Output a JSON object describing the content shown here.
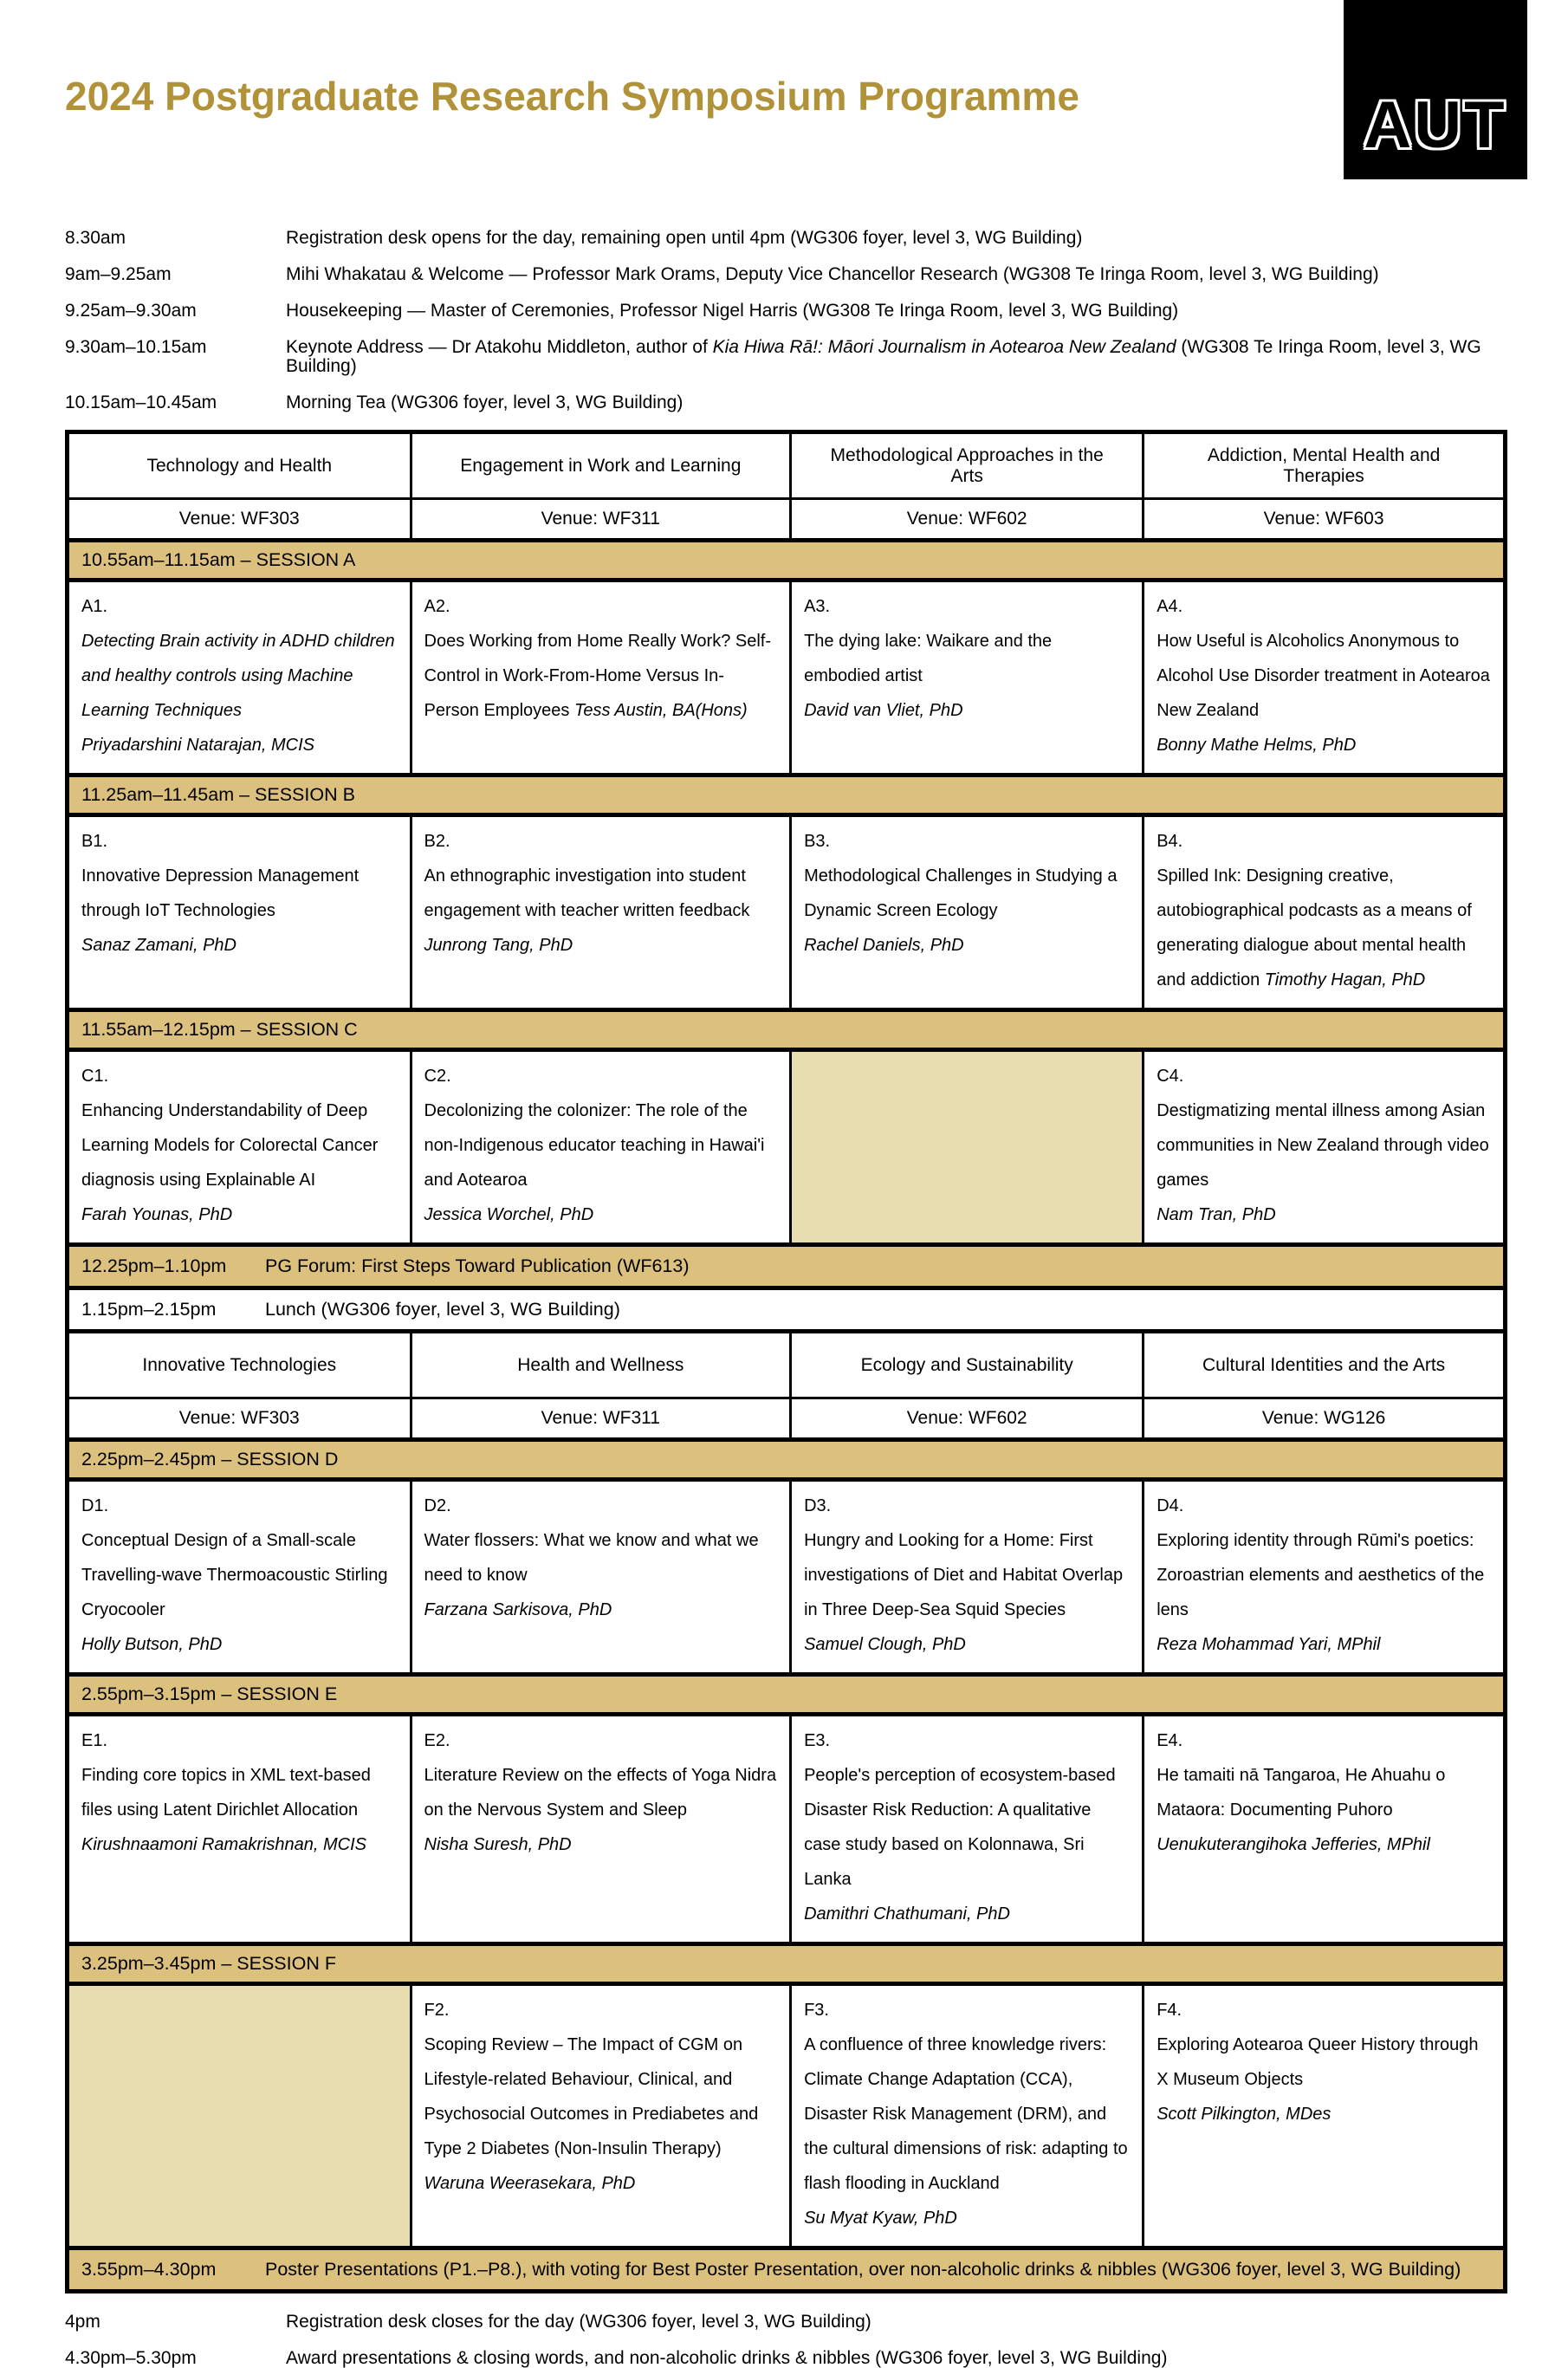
{
  "page": {
    "title": "2024 Postgraduate Research Symposium Programme",
    "logo_text": "AUT"
  },
  "colors": {
    "title": "#b19238",
    "session_band": "#dcc07e",
    "empty_cell": "#e8dcb1"
  },
  "schedule_top": [
    {
      "time": "8.30am",
      "desc": [
        {
          "t": "Registration desk opens for the day, remaining open until 4pm (WG306 foyer, level 3, WG Building)"
        }
      ]
    },
    {
      "time": "9am–9.25am",
      "desc": [
        {
          "t": "Mihi Whakatau & Welcome — Professor Mark Orams, Deputy Vice Chancellor Research (WG308 Te Iringa Room, level 3, WG Building)"
        }
      ]
    },
    {
      "time": "9.25am–9.30am",
      "desc": [
        {
          "t": "Housekeeping — Master of Ceremonies, Professor Nigel Harris (WG308 Te Iringa Room, level 3, WG Building)"
        }
      ]
    },
    {
      "time": "9.30am–10.15am",
      "desc": [
        {
          "t": "Keynote Address — Dr Atakohu Middleton,  author of "
        },
        {
          "t": "Kia Hiwa Rā!: Māori Journalism in Aotearoa New Zealand",
          "i": true
        },
        {
          "t": " (WG308 Te Iringa Room, level 3, WG Building)"
        }
      ]
    },
    {
      "time": "10.15am–10.45am",
      "desc": [
        {
          "t": "Morning Tea (WG306 foyer, level 3, WG Building)"
        }
      ]
    }
  ],
  "program_table": {
    "part1": {
      "themes": [
        "Technology and Health",
        "Engagement in Work and Learning",
        "Methodological Approaches in the Arts",
        "Addiction, Mental Health and Therapies"
      ],
      "venues": [
        "Venue: WF303",
        "Venue: WF311",
        "Venue: WF602",
        "Venue: WF603"
      ],
      "sessions": [
        {
          "label": "10.55am–11.15am – SESSION A",
          "cells": [
            {
              "code": "A1.",
              "title": "Detecting Brain activity in ADHD children and healthy controls using Machine Learning Techniques",
              "title_italic": true,
              "speaker": "Priyadarshini Natarajan, MCIS"
            },
            {
              "code": "A2.",
              "title": "Does Working from Home Really Work? Self-Control in Work-From-Home Versus In-Person Employees",
              "speaker": "Tess Austin, BA(Hons)",
              "speaker_inline": true
            },
            {
              "code": "A3.",
              "title": "The dying lake: Waikare and the embodied artist",
              "speaker": "David van Vliet, PhD"
            },
            {
              "code": "A4.",
              "title": "How Useful is Alcoholics Anonymous to Alcohol Use Disorder treatment in Aotearoa New Zealand",
              "speaker": "Bonny Mathe Helms, PhD"
            }
          ]
        },
        {
          "label": "11.25am–11.45am – SESSION B",
          "cells": [
            {
              "code": "B1.",
              "title": "Innovative Depression Management through IoT Technologies",
              "speaker": "Sanaz Zamani, PhD"
            },
            {
              "code": "B2.",
              "title": "An ethnographic investigation into student engagement with teacher written feedback",
              "speaker": "Junrong Tang, PhD"
            },
            {
              "code": "B3.",
              "title": "Methodological Challenges in Studying a Dynamic Screen Ecology",
              "speaker": "Rachel Daniels, PhD"
            },
            {
              "code": "B4.",
              "title": "Spilled Ink: Designing creative, autobiographical podcasts as a means of generating dialogue about mental health and addiction",
              "speaker": "Timothy Hagan, PhD",
              "speaker_inline": true
            }
          ]
        },
        {
          "label": "11.55am–12.15pm – SESSION C",
          "cells": [
            {
              "code": "C1.",
              "title": "Enhancing Understandability of Deep Learning Models for Colorectal Cancer diagnosis using Explainable AI",
              "speaker": "Farah Younas, PhD"
            },
            {
              "code": "C2.",
              "title": "Decolonizing the colonizer: The role of the non-Indigenous educator teaching in Hawai'i and Aotearoa",
              "speaker": "Jessica Worchel, PhD"
            },
            {
              "empty": true
            },
            {
              "code": "C4.",
              "title": "Destigmatizing mental illness among Asian communities in New Zealand through video games",
              "speaker": "Nam Tran, PhD"
            }
          ]
        }
      ]
    },
    "pg_forum_row": {
      "time": "12.25pm–1.10pm",
      "text": "PG Forum: First Steps Toward Publication (WF613)"
    },
    "lunch_row": {
      "time": "1.15pm–2.15pm",
      "text": "Lunch (WG306 foyer, level 3, WG Building)"
    },
    "part2": {
      "themes": [
        "Innovative Technologies",
        "Health and Wellness",
        "Ecology and Sustainability",
        "Cultural Identities and the Arts"
      ],
      "venues": [
        "Venue: WF303",
        "Venue: WF311",
        "Venue: WF602",
        "Venue: WG126"
      ],
      "sessions": [
        {
          "label": "2.25pm–2.45pm – SESSION D",
          "cells": [
            {
              "code": "D1.",
              "title": "Conceptual Design of a Small-scale Travelling-wave Thermoacoustic Stirling Cryocooler",
              "speaker": "Holly Butson, PhD"
            },
            {
              "code": "D2.",
              "title": "Water flossers: What we know and what we need to know",
              "speaker": "Farzana Sarkisova, PhD"
            },
            {
              "code": "D3.",
              "title": "Hungry and Looking for a Home: First investigations of Diet and Habitat Overlap in Three Deep-Sea Squid Species",
              "speaker": "Samuel Clough, PhD"
            },
            {
              "code": "D4.",
              "title": "Exploring identity through Rūmi's poetics: Zoroastrian elements and aesthetics of the lens",
              "speaker": "Reza Mohammad Yari, MPhil"
            }
          ]
        },
        {
          "label": "2.55pm–3.15pm – SESSION E",
          "cells": [
            {
              "code": "E1.",
              "title": "Finding core topics in XML text-based files using Latent Dirichlet Allocation",
              "speaker": "Kirushnaamoni Ramakrishnan, MCIS"
            },
            {
              "code": "E2.",
              "title": "Literature Review on the effects of Yoga Nidra on the Nervous System and Sleep",
              "speaker": "Nisha Suresh, PhD"
            },
            {
              "code": "E3.",
              "title": "People's perception of ecosystem-based Disaster Risk Reduction: A qualitative case study based on Kolonnawa, Sri Lanka",
              "speaker": "Damithri Chathumani, PhD"
            },
            {
              "code": "E4.",
              "title": "He tamaiti nā Tangaroa, He Ahuahu o Mataora: Documenting Puhoro",
              "speaker": "Uenukuterangihoka Jefferies, MPhil"
            }
          ]
        },
        {
          "label": "3.25pm–3.45pm – SESSION F",
          "cells": [
            {
              "empty": true
            },
            {
              "code": "F2.",
              "title": "Scoping Review – The Impact of CGM on Lifestyle-related Behaviour, Clinical, and Psychosocial Outcomes in Prediabetes and Type 2 Diabetes (Non-Insulin Therapy)",
              "speaker": "Waruna Weerasekara, PhD"
            },
            {
              "code": "F3.",
              "title": "A confluence of three knowledge rivers: Climate Change Adaptation (CCA), Disaster Risk Management (DRM), and the cultural dimensions of risk: adapting to flash flooding in Auckland",
              "speaker": "Su Myat Kyaw, PhD"
            },
            {
              "code": "F4.",
              "title": "Exploring Aotearoa Queer History through X Museum Objects",
              "speaker": "Scott Pilkington, MDes"
            }
          ]
        }
      ]
    },
    "poster_row": {
      "time": "3.55pm–4.30pm",
      "text": "Poster Presentations (P1.–P8.), with voting for Best Poster Presentation, over non-alcoholic drinks & nibbles (WG306 foyer, level 3, WG Building)"
    }
  },
  "schedule_bottom": [
    {
      "time": "4pm",
      "desc": [
        {
          "t": "Registration desk closes for the day (WG306 foyer, level 3, WG Building)"
        }
      ]
    },
    {
      "time": "4.30pm–5.30pm",
      "desc": [
        {
          "t": "Award presentations & closing words, and non-alcoholic drinks & nibbles (WG306 foyer, level 3, WG Building)"
        }
      ]
    }
  ]
}
